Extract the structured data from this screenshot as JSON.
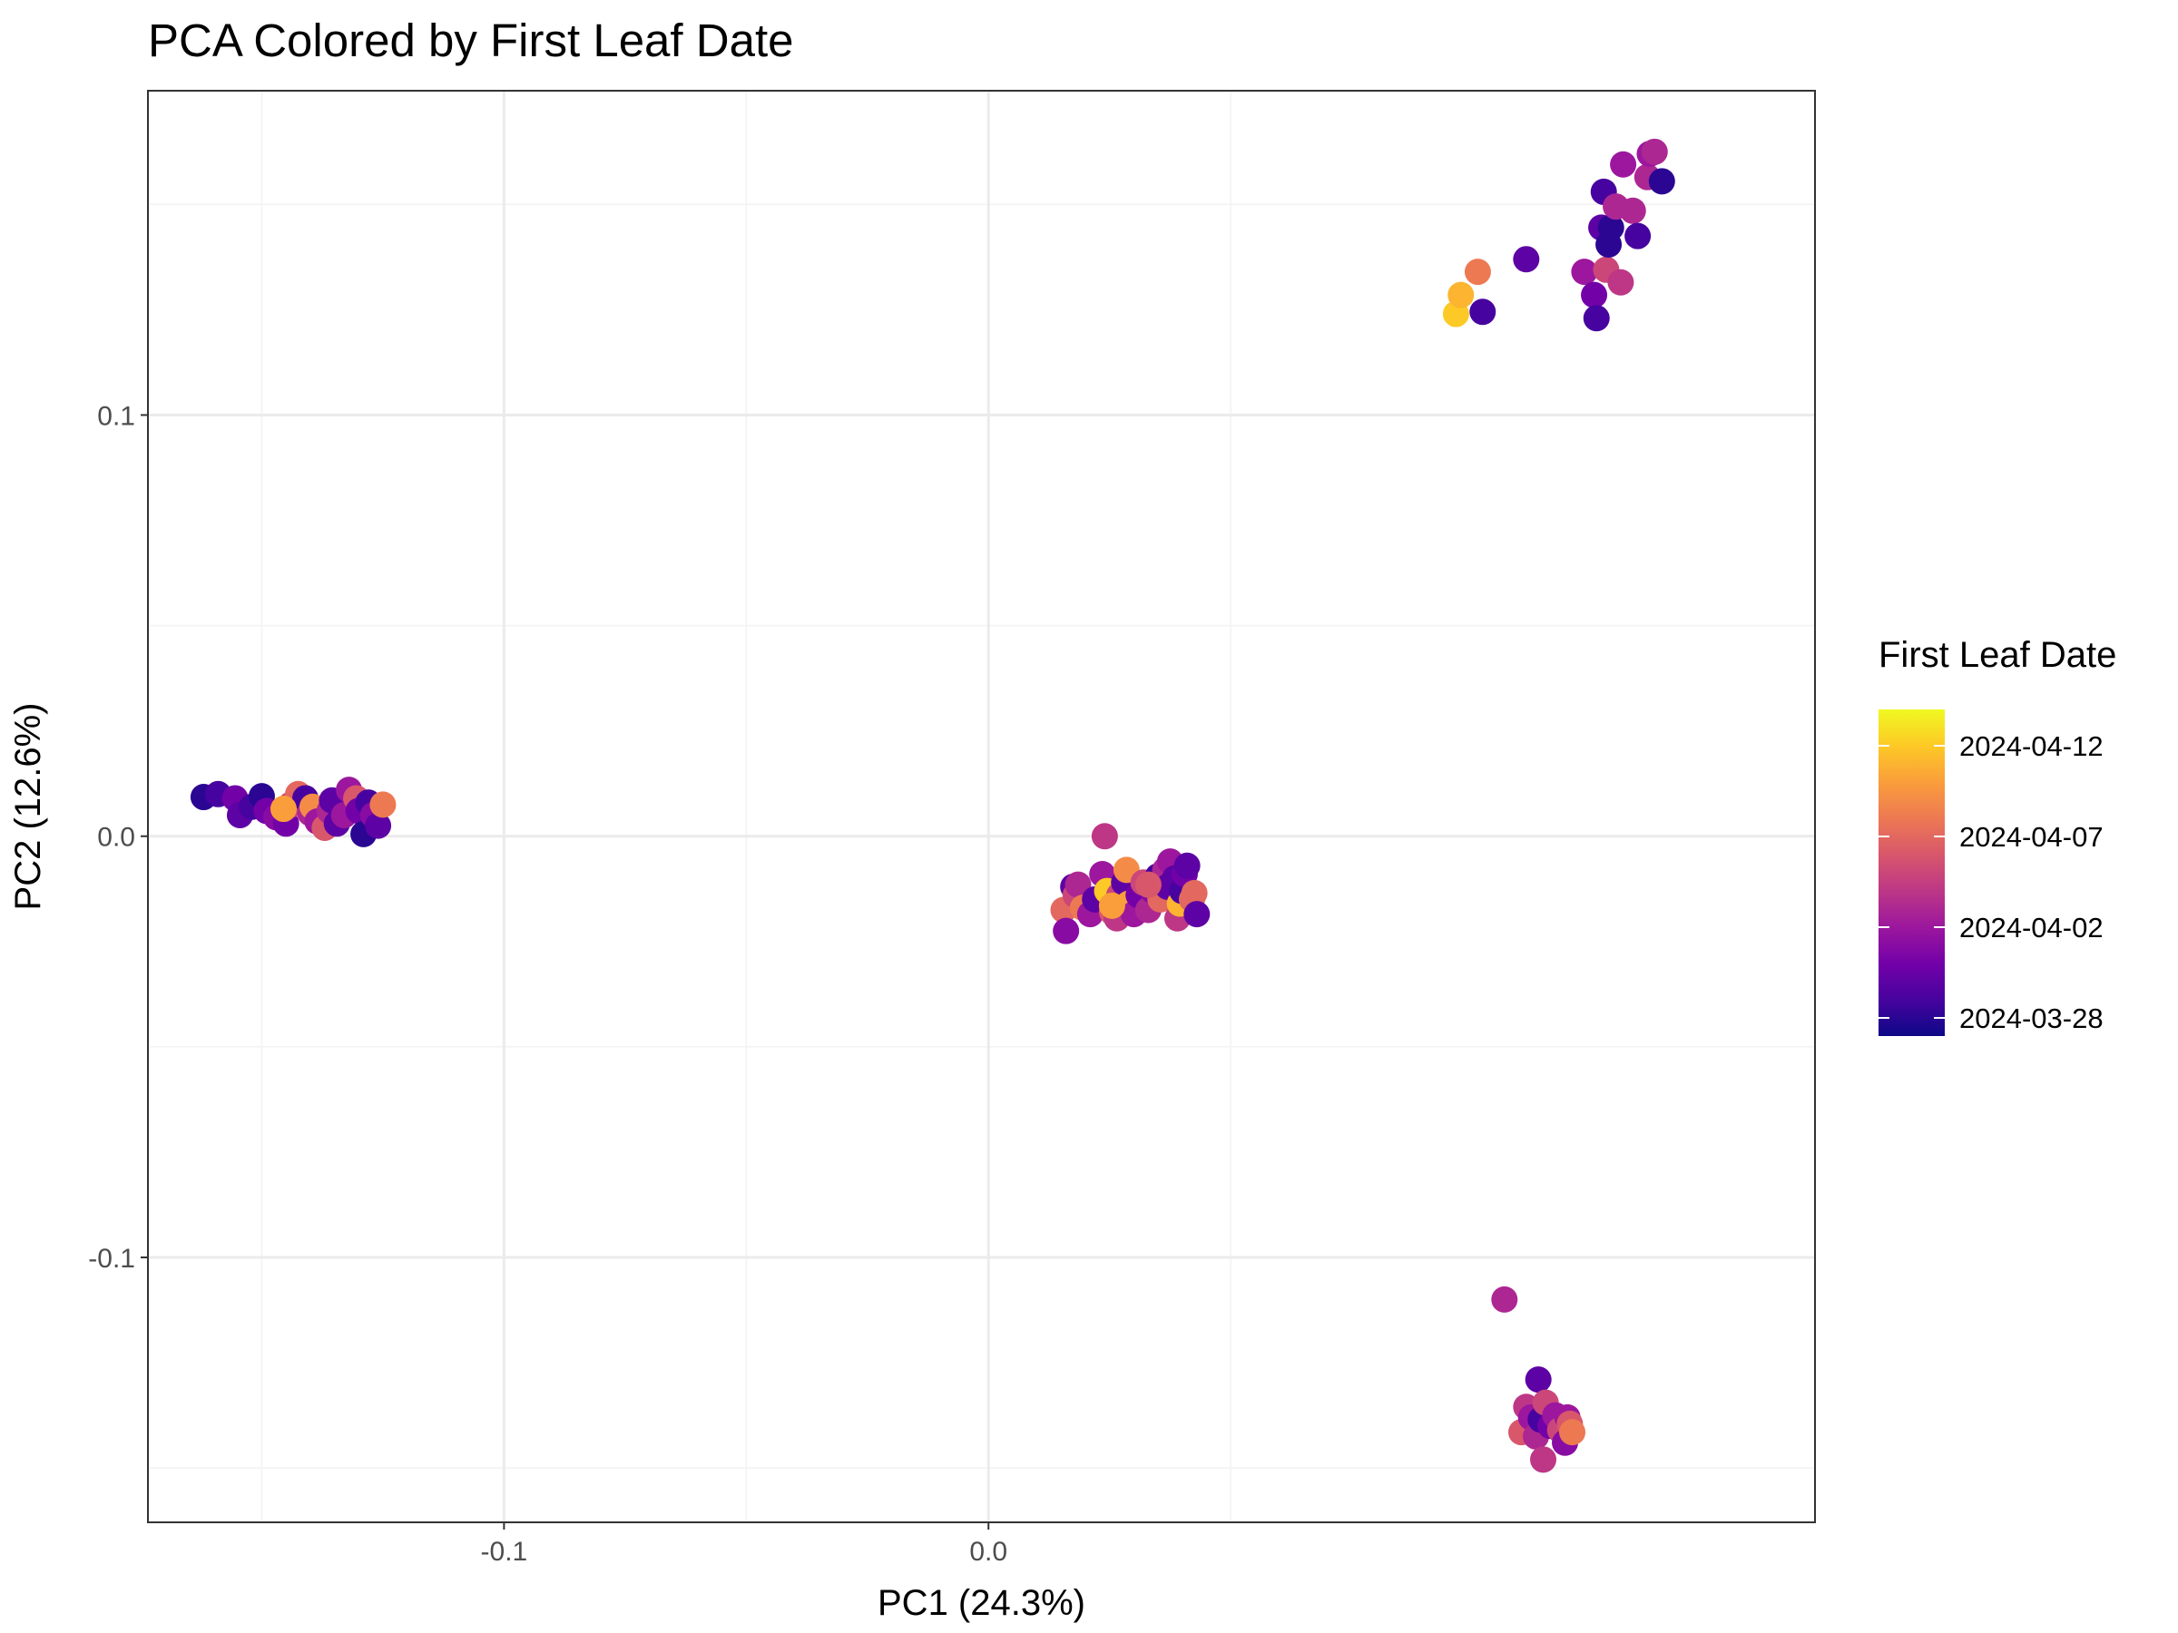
{
  "chart_data": {
    "type": "scatter",
    "title": "PCA Colored by First Leaf Date",
    "xlabel": "PC1 (24.3%)",
    "ylabel": "PC2 (12.6%)",
    "xlim": [
      -0.1735,
      0.1706
    ],
    "ylim": [
      -0.1629,
      0.177
    ],
    "x_ticks": [
      -0.1,
      0.0
    ],
    "x_tick_labels": [
      "-0.1",
      "0.0"
    ],
    "x_minor_ticks": [
      -0.15,
      -0.05,
      0.05
    ],
    "y_ticks": [
      -0.1,
      0.0,
      0.1
    ],
    "y_tick_labels": [
      "-0.1",
      "0.0",
      "0.1"
    ],
    "y_minor_ticks": [
      -0.15,
      -0.05,
      0.05,
      0.15
    ],
    "grid": true,
    "color_scale": {
      "name": "plasma",
      "title": "First Leaf Date",
      "min": "2024-03-27",
      "max": "2024-04-14",
      "breaks": [
        "2024-03-28",
        "2024-04-02",
        "2024-04-07",
        "2024-04-12"
      ],
      "stops": [
        "#0d0887",
        "#47039f",
        "#7301a8",
        "#9c179e",
        "#bd3786",
        "#d8576b",
        "#ed7953",
        "#fa9e3b",
        "#fdc926",
        "#f0f921"
      ]
    },
    "points": [
      {
        "x": -0.162,
        "y": 0.0093,
        "date": "2024-03-28"
      },
      {
        "x": -0.159,
        "y": 0.01,
        "date": "2024-03-29"
      },
      {
        "x": -0.1555,
        "y": 0.009,
        "date": "2024-03-31"
      },
      {
        "x": -0.1545,
        "y": 0.005,
        "date": "2024-03-30"
      },
      {
        "x": -0.152,
        "y": 0.007,
        "date": "2024-03-29"
      },
      {
        "x": -0.15,
        "y": 0.0095,
        "date": "2024-03-28"
      },
      {
        "x": -0.149,
        "y": 0.006,
        "date": "2024-03-31"
      },
      {
        "x": -0.147,
        "y": 0.0045,
        "date": "2024-04-01"
      },
      {
        "x": -0.145,
        "y": 0.003,
        "date": "2024-03-31"
      },
      {
        "x": -0.144,
        "y": 0.0075,
        "date": "2024-04-05"
      },
      {
        "x": -0.1425,
        "y": 0.01,
        "date": "2024-04-07"
      },
      {
        "x": -0.141,
        "y": 0.009,
        "date": "2024-03-29"
      },
      {
        "x": -0.14,
        "y": 0.0055,
        "date": "2024-04-03"
      },
      {
        "x": -0.1395,
        "y": 0.007,
        "date": "2024-04-09"
      },
      {
        "x": -0.1385,
        "y": 0.0035,
        "date": "2024-04-02"
      },
      {
        "x": -0.137,
        "y": 0.002,
        "date": "2024-04-06"
      },
      {
        "x": -0.136,
        "y": 0.006,
        "date": "2024-04-03"
      },
      {
        "x": -0.1355,
        "y": 0.0085,
        "date": "2024-03-30"
      },
      {
        "x": -0.1345,
        "y": 0.003,
        "date": "2024-03-30"
      },
      {
        "x": -0.133,
        "y": 0.005,
        "date": "2024-04-02"
      },
      {
        "x": -0.132,
        "y": 0.011,
        "date": "2024-04-02"
      },
      {
        "x": -0.1305,
        "y": 0.009,
        "date": "2024-04-06"
      },
      {
        "x": -0.13,
        "y": 0.006,
        "date": "2024-03-31"
      },
      {
        "x": -0.129,
        "y": 0.0005,
        "date": "2024-03-28"
      },
      {
        "x": -0.128,
        "y": 0.008,
        "date": "2024-03-29"
      },
      {
        "x": -0.127,
        "y": 0.005,
        "date": "2024-04-01"
      },
      {
        "x": -0.126,
        "y": 0.0025,
        "date": "2024-03-30"
      },
      {
        "x": -0.125,
        "y": 0.0075,
        "date": "2024-04-08"
      },
      {
        "x": -0.1455,
        "y": 0.0065,
        "date": "2024-04-10"
      },
      {
        "x": 0.0155,
        "y": -0.0175,
        "date": "2024-04-07"
      },
      {
        "x": 0.016,
        "y": -0.0225,
        "date": "2024-04-01"
      },
      {
        "x": 0.0175,
        "y": -0.012,
        "date": "2024-03-30"
      },
      {
        "x": 0.018,
        "y": -0.014,
        "date": "2024-04-05"
      },
      {
        "x": 0.0185,
        "y": -0.0115,
        "date": "2024-04-03"
      },
      {
        "x": 0.0195,
        "y": -0.017,
        "date": "2024-04-08"
      },
      {
        "x": 0.021,
        "y": -0.0185,
        "date": "2024-04-02"
      },
      {
        "x": 0.022,
        "y": -0.015,
        "date": "2024-03-30"
      },
      {
        "x": 0.0235,
        "y": -0.009,
        "date": "2024-04-02"
      },
      {
        "x": 0.024,
        "y": 0.0,
        "date": "2024-04-04"
      },
      {
        "x": 0.0245,
        "y": -0.013,
        "date": "2024-04-12"
      },
      {
        "x": 0.0255,
        "y": -0.018,
        "date": "2024-04-06"
      },
      {
        "x": 0.0265,
        "y": -0.0195,
        "date": "2024-04-04"
      },
      {
        "x": 0.027,
        "y": -0.014,
        "date": "2024-04-05"
      },
      {
        "x": 0.028,
        "y": -0.011,
        "date": "2024-03-30"
      },
      {
        "x": 0.0285,
        "y": -0.008,
        "date": "2024-04-09"
      },
      {
        "x": 0.029,
        "y": -0.016,
        "date": "2024-04-10"
      },
      {
        "x": 0.03,
        "y": -0.0185,
        "date": "2024-04-02"
      },
      {
        "x": 0.031,
        "y": -0.014,
        "date": "2024-03-31"
      },
      {
        "x": 0.032,
        "y": -0.011,
        "date": "2024-04-05"
      },
      {
        "x": 0.033,
        "y": -0.0175,
        "date": "2024-04-03"
      },
      {
        "x": 0.034,
        "y": -0.013,
        "date": "2024-04-01"
      },
      {
        "x": 0.035,
        "y": -0.0095,
        "date": "2024-03-29"
      },
      {
        "x": 0.0355,
        "y": -0.015,
        "date": "2024-04-07"
      },
      {
        "x": 0.0365,
        "y": -0.008,
        "date": "2024-04-03"
      },
      {
        "x": 0.037,
        "y": -0.012,
        "date": "2024-03-30"
      },
      {
        "x": 0.0375,
        "y": -0.006,
        "date": "2024-04-02"
      },
      {
        "x": 0.0385,
        "y": -0.01,
        "date": "2024-03-30"
      },
      {
        "x": 0.039,
        "y": -0.0195,
        "date": "2024-04-04"
      },
      {
        "x": 0.0395,
        "y": -0.016,
        "date": "2024-04-11"
      },
      {
        "x": 0.04,
        "y": -0.013,
        "date": "2024-03-29"
      },
      {
        "x": 0.0405,
        "y": -0.009,
        "date": "2024-03-31"
      },
      {
        "x": 0.041,
        "y": -0.007,
        "date": "2024-03-30"
      },
      {
        "x": 0.042,
        "y": -0.015,
        "date": "2024-04-07"
      },
      {
        "x": 0.0425,
        "y": -0.0135,
        "date": "2024-04-07"
      },
      {
        "x": 0.043,
        "y": -0.0185,
        "date": "2024-03-30"
      },
      {
        "x": 0.0255,
        "y": -0.0165,
        "date": "2024-04-10"
      },
      {
        "x": 0.033,
        "y": -0.0115,
        "date": "2024-04-06"
      },
      {
        "x": 0.0965,
        "y": 0.124,
        "date": "2024-04-12"
      },
      {
        "x": 0.0975,
        "y": 0.1285,
        "date": "2024-04-11"
      },
      {
        "x": 0.101,
        "y": 0.134,
        "date": "2024-04-08"
      },
      {
        "x": 0.102,
        "y": 0.1245,
        "date": "2024-03-29"
      },
      {
        "x": 0.111,
        "y": 0.137,
        "date": "2024-03-30"
      },
      {
        "x": 0.123,
        "y": 0.134,
        "date": "2024-04-02"
      },
      {
        "x": 0.125,
        "y": 0.1285,
        "date": "2024-03-31"
      },
      {
        "x": 0.1255,
        "y": 0.123,
        "date": "2024-03-29"
      },
      {
        "x": 0.1265,
        "y": 0.1445,
        "date": "2024-03-30"
      },
      {
        "x": 0.127,
        "y": 0.153,
        "date": "2024-03-29"
      },
      {
        "x": 0.1275,
        "y": 0.1345,
        "date": "2024-04-05"
      },
      {
        "x": 0.128,
        "y": 0.1405,
        "date": "2024-03-28"
      },
      {
        "x": 0.1285,
        "y": 0.1445,
        "date": "2024-03-28"
      },
      {
        "x": 0.1295,
        "y": 0.1495,
        "date": "2024-04-03"
      },
      {
        "x": 0.1305,
        "y": 0.1315,
        "date": "2024-04-04"
      },
      {
        "x": 0.131,
        "y": 0.1595,
        "date": "2024-04-02"
      },
      {
        "x": 0.133,
        "y": 0.1485,
        "date": "2024-04-03"
      },
      {
        "x": 0.134,
        "y": 0.1425,
        "date": "2024-03-29"
      },
      {
        "x": 0.136,
        "y": 0.1565,
        "date": "2024-04-03"
      },
      {
        "x": 0.1365,
        "y": 0.162,
        "date": "2024-04-02"
      },
      {
        "x": 0.1375,
        "y": 0.1625,
        "date": "2024-04-03"
      },
      {
        "x": 0.139,
        "y": 0.1555,
        "date": "2024-03-28"
      },
      {
        "x": 0.1065,
        "y": -0.11,
        "date": "2024-04-03"
      },
      {
        "x": 0.11,
        "y": -0.1415,
        "date": "2024-04-06"
      },
      {
        "x": 0.111,
        "y": -0.1355,
        "date": "2024-04-04"
      },
      {
        "x": 0.112,
        "y": -0.138,
        "date": "2024-04-02"
      },
      {
        "x": 0.113,
        "y": -0.1425,
        "date": "2024-04-03"
      },
      {
        "x": 0.1135,
        "y": -0.129,
        "date": "2024-03-30"
      },
      {
        "x": 0.114,
        "y": -0.1385,
        "date": "2024-03-29"
      },
      {
        "x": 0.1145,
        "y": -0.148,
        "date": "2024-04-04"
      },
      {
        "x": 0.115,
        "y": -0.1345,
        "date": "2024-04-05"
      },
      {
        "x": 0.116,
        "y": -0.14,
        "date": "2024-03-31"
      },
      {
        "x": 0.117,
        "y": -0.1375,
        "date": "2024-04-02"
      },
      {
        "x": 0.118,
        "y": -0.141,
        "date": "2024-04-05"
      },
      {
        "x": 0.119,
        "y": -0.144,
        "date": "2024-04-01"
      },
      {
        "x": 0.1195,
        "y": -0.138,
        "date": "2024-04-02"
      },
      {
        "x": 0.12,
        "y": -0.1395,
        "date": "2024-04-06"
      },
      {
        "x": 0.1205,
        "y": -0.1415,
        "date": "2024-04-08"
      }
    ]
  }
}
